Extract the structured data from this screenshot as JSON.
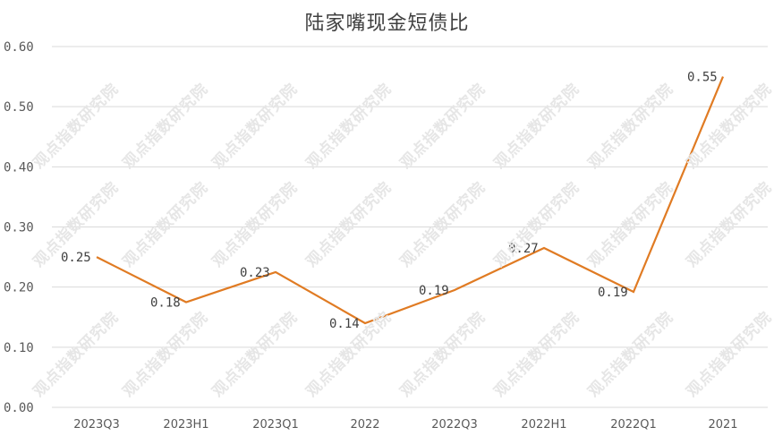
{
  "chart_data": {
    "type": "line",
    "title": "陆家嘴现金短债比",
    "categories": [
      "2023Q3",
      "2023H1",
      "2023Q1",
      "2022",
      "2022Q3",
      "2022H1",
      "2022Q1",
      "2021"
    ],
    "values": [
      0.25,
      0.175,
      0.225,
      0.14,
      0.195,
      0.265,
      0.192,
      0.55
    ],
    "data_labels": [
      "0.25",
      "0.18",
      "0.23",
      "0.14",
      "0.19",
      "0.27",
      "0.19",
      "0.55"
    ],
    "y_ticks": [
      "0.00",
      "0.10",
      "0.20",
      "0.30",
      "0.40",
      "0.50",
      "0.60"
    ],
    "ylim": [
      0,
      0.6
    ],
    "grid": true,
    "legend": "none",
    "line_color": "#e07b23",
    "grid_color": "#d9d9d9",
    "watermark": "观点指数研究院"
  }
}
